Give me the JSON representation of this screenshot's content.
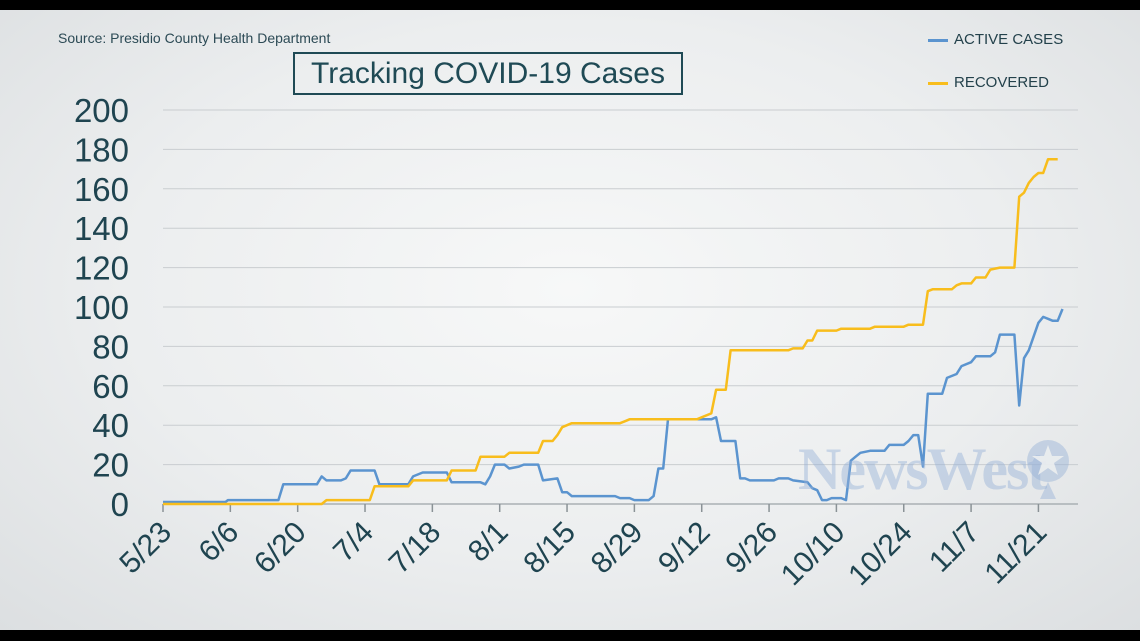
{
  "source": "Source: Presidio County Health Department",
  "logo_text": "NewsWest",
  "colors": {
    "active": "#5b94cf",
    "recovered": "#f8bd1c",
    "text": "#1f4a55",
    "grid": "#c9cdd0"
  },
  "chart_data": {
    "type": "line",
    "title": "Tracking COVID-19 Cases",
    "xlabel": "",
    "ylabel": "",
    "ylim": [
      0,
      200
    ],
    "yticks": [
      0,
      20,
      40,
      60,
      80,
      100,
      120,
      140,
      160,
      180,
      200
    ],
    "x_day_range": [
      0,
      186
    ],
    "x_ticks": [
      {
        "day": 0,
        "label": "5/23"
      },
      {
        "day": 14,
        "label": "6/6"
      },
      {
        "day": 28,
        "label": "6/20"
      },
      {
        "day": 42,
        "label": "7/4"
      },
      {
        "day": 56,
        "label": "7/18"
      },
      {
        "day": 70,
        "label": "8/1"
      },
      {
        "day": 84,
        "label": "8/15"
      },
      {
        "day": 98,
        "label": "8/29"
      },
      {
        "day": 112,
        "label": "9/12"
      },
      {
        "day": 126,
        "label": "9/26"
      },
      {
        "day": 140,
        "label": "10/10"
      },
      {
        "day": 154,
        "label": "10/24"
      },
      {
        "day": 168,
        "label": "11/7"
      },
      {
        "day": 182,
        "label": "11/21"
      }
    ],
    "grid": true,
    "legend": "top-right",
    "series": [
      {
        "name": "ACTIVE CASES",
        "color": "#5b94cf",
        "points": [
          [
            0,
            1
          ],
          [
            13,
            1
          ],
          [
            13.5,
            2
          ],
          [
            24,
            2
          ],
          [
            25,
            10
          ],
          [
            32,
            10
          ],
          [
            33,
            14
          ],
          [
            34,
            12
          ],
          [
            37,
            12
          ],
          [
            38,
            13
          ],
          [
            39,
            17
          ],
          [
            44,
            17
          ],
          [
            45,
            10
          ],
          [
            51,
            10
          ],
          [
            52,
            14
          ],
          [
            54,
            16
          ],
          [
            59,
            16
          ],
          [
            60,
            11
          ],
          [
            66,
            11
          ],
          [
            67,
            10
          ],
          [
            68,
            14
          ],
          [
            69,
            20
          ],
          [
            71,
            20
          ],
          [
            72,
            18
          ],
          [
            74,
            19
          ],
          [
            75,
            20
          ],
          [
            78,
            20
          ],
          [
            79,
            12
          ],
          [
            82,
            13
          ],
          [
            83,
            6
          ],
          [
            84,
            6
          ],
          [
            85,
            4
          ],
          [
            94,
            4
          ],
          [
            95,
            3
          ],
          [
            97,
            3
          ],
          [
            98,
            2
          ],
          [
            101,
            2
          ],
          [
            102,
            4
          ],
          [
            103,
            18
          ],
          [
            104,
            18
          ],
          [
            105,
            43
          ],
          [
            114,
            43
          ],
          [
            115,
            44
          ],
          [
            116,
            32
          ],
          [
            119,
            32
          ],
          [
            120,
            13
          ],
          [
            121,
            13
          ],
          [
            122,
            12
          ],
          [
            127,
            12
          ],
          [
            128,
            13
          ],
          [
            130,
            13
          ],
          [
            131,
            12
          ],
          [
            134,
            11
          ],
          [
            135,
            8
          ],
          [
            136,
            7
          ],
          [
            137,
            2
          ],
          [
            138,
            2
          ],
          [
            139,
            3
          ],
          [
            141,
            3
          ],
          [
            142,
            2
          ],
          [
            143,
            22
          ],
          [
            144,
            24
          ],
          [
            145,
            26
          ],
          [
            147,
            27
          ],
          [
            150,
            27
          ],
          [
            151,
            30
          ],
          [
            154,
            30
          ],
          [
            155,
            32
          ],
          [
            156,
            35
          ],
          [
            157,
            35
          ],
          [
            158,
            19
          ],
          [
            159,
            56
          ],
          [
            162,
            56
          ],
          [
            163,
            64
          ],
          [
            165,
            66
          ],
          [
            166,
            70
          ],
          [
            168,
            72
          ],
          [
            169,
            75
          ],
          [
            172,
            75
          ],
          [
            173,
            77
          ],
          [
            174,
            86
          ],
          [
            177,
            86
          ],
          [
            178,
            50
          ],
          [
            179,
            74
          ],
          [
            180,
            78
          ],
          [
            181,
            85
          ],
          [
            182,
            92
          ],
          [
            183,
            95
          ],
          [
            184,
            94
          ],
          [
            185,
            93
          ],
          [
            186,
            93
          ],
          [
            187,
            99
          ]
        ]
      },
      {
        "name": "RECOVERED",
        "color": "#f8bd1c",
        "points": [
          [
            0,
            0
          ],
          [
            33,
            0
          ],
          [
            34,
            2
          ],
          [
            43,
            2
          ],
          [
            44,
            9
          ],
          [
            51,
            9
          ],
          [
            52,
            12
          ],
          [
            59,
            12
          ],
          [
            60,
            17
          ],
          [
            65,
            17
          ],
          [
            66,
            24
          ],
          [
            71,
            24
          ],
          [
            72,
            26
          ],
          [
            78,
            26
          ],
          [
            79,
            32
          ],
          [
            81,
            32
          ],
          [
            82,
            35
          ],
          [
            83,
            39
          ],
          [
            84,
            40
          ],
          [
            85,
            41
          ],
          [
            95,
            41
          ],
          [
            96,
            42
          ],
          [
            97,
            43
          ],
          [
            111,
            43
          ],
          [
            112,
            44
          ],
          [
            114,
            46
          ],
          [
            115,
            58
          ],
          [
            117,
            58
          ],
          [
            118,
            78
          ],
          [
            130,
            78
          ],
          [
            131,
            79
          ],
          [
            133,
            79
          ],
          [
            134,
            83
          ],
          [
            135,
            83
          ],
          [
            136,
            88
          ],
          [
            140,
            88
          ],
          [
            141,
            89
          ],
          [
            147,
            89
          ],
          [
            148,
            90
          ],
          [
            154,
            90
          ],
          [
            155,
            91
          ],
          [
            158,
            91
          ],
          [
            159,
            108
          ],
          [
            160,
            109
          ],
          [
            164,
            109
          ],
          [
            165,
            111
          ],
          [
            166,
            112
          ],
          [
            168,
            112
          ],
          [
            169,
            115
          ],
          [
            171,
            115
          ],
          [
            172,
            119
          ],
          [
            174,
            120
          ],
          [
            177,
            120
          ],
          [
            178,
            156
          ],
          [
            179,
            158
          ],
          [
            180,
            163
          ],
          [
            181,
            166
          ],
          [
            182,
            168
          ],
          [
            183,
            168
          ],
          [
            184,
            175
          ],
          [
            186,
            175
          ]
        ]
      }
    ]
  }
}
